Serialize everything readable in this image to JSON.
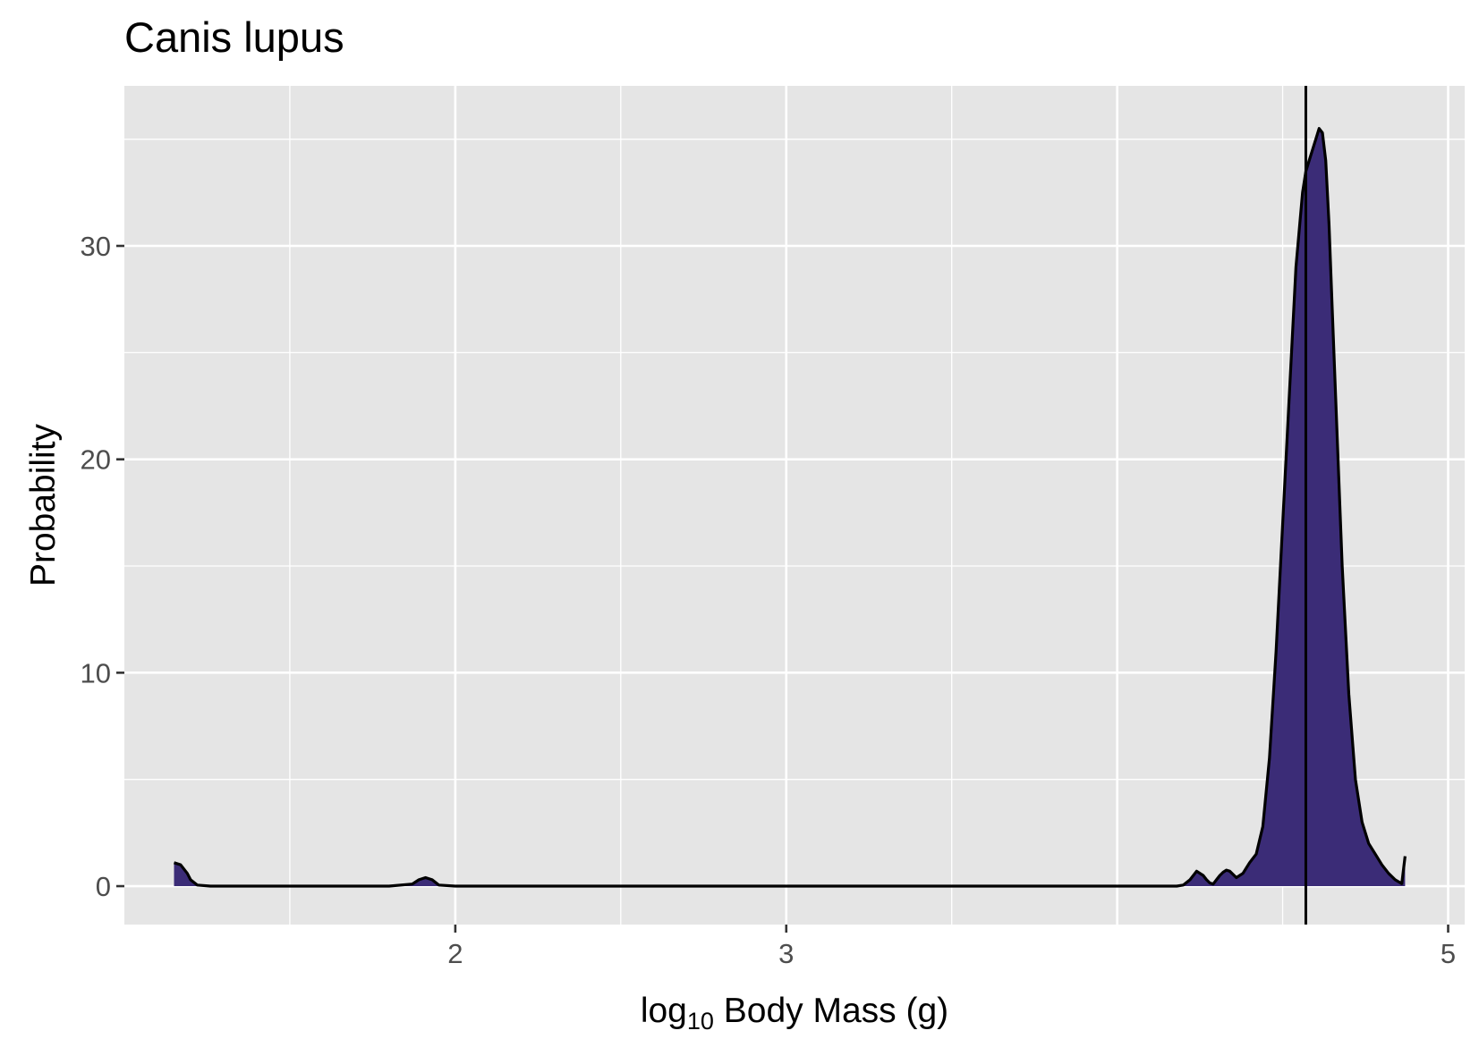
{
  "chart_data": {
    "type": "area",
    "title": "Canis lupus",
    "xlabel": {
      "pre": "log",
      "sub": "10",
      "post": " Body Mass (g)"
    },
    "ylabel": "Probability",
    "xlim": [
      1.0,
      5.05
    ],
    "ylim": [
      -1.8,
      37.5
    ],
    "x_ticks": [
      2,
      3,
      5
    ],
    "x_minor_grid": [
      1.5,
      2.5,
      3.5,
      4.5
    ],
    "x_major_grid": [
      2,
      3,
      4,
      5
    ],
    "y_ticks": [
      0,
      10,
      20,
      30
    ],
    "y_minor_grid": [
      5,
      15,
      25,
      35
    ],
    "grid": true,
    "vline_x": 4.57,
    "series": [
      {
        "fill": "#3b2c77",
        "line": "#000000",
        "x": [
          1.15,
          1.17,
          1.19,
          1.2,
          1.22,
          1.26,
          1.5,
          1.8,
          1.87,
          1.89,
          1.91,
          1.93,
          1.95,
          2.0,
          2.5,
          3.0,
          3.5,
          3.62,
          3.64,
          3.66,
          3.68,
          3.7,
          3.72,
          3.74,
          3.76,
          3.78,
          3.8,
          3.82,
          3.84,
          3.86,
          3.88,
          3.9,
          3.92,
          3.94,
          3.96,
          3.98,
          4.0,
          4.02,
          4.04,
          4.06,
          4.08,
          4.1,
          4.12,
          4.14,
          4.16,
          4.18,
          4.2,
          4.22,
          4.24,
          4.26,
          4.27,
          4.28,
          4.29,
          4.3,
          4.31,
          4.32,
          4.33,
          4.34,
          4.35,
          4.36,
          4.38,
          4.4,
          4.42,
          4.44,
          4.46,
          4.48,
          4.5,
          4.52,
          4.54,
          4.56,
          4.57,
          4.58,
          4.6,
          4.61,
          4.62,
          4.63,
          4.64,
          4.65,
          4.66,
          4.68,
          4.7,
          4.72,
          4.74,
          4.76,
          4.78,
          4.8,
          4.82,
          4.84,
          4.86,
          4.87
        ],
        "y": [
          1.1,
          1.0,
          0.6,
          0.3,
          0.05,
          0.0,
          0.0,
          0.0,
          0.1,
          0.3,
          0.4,
          0.3,
          0.05,
          0.0,
          0.0,
          0.0,
          0.0,
          0.0,
          0.0,
          0.0,
          0.0,
          0.0,
          0.0,
          0.0,
          0.0,
          0.0,
          0.0,
          0.0,
          0.0,
          0.0,
          0.0,
          0.0,
          0.0,
          0.0,
          0.0,
          0.0,
          0.0,
          0.0,
          0.0,
          0.0,
          0.0,
          0.0,
          0.0,
          0.0,
          0.0,
          0.0,
          0.05,
          0.3,
          0.7,
          0.5,
          0.3,
          0.15,
          0.1,
          0.3,
          0.5,
          0.65,
          0.75,
          0.7,
          0.55,
          0.4,
          0.6,
          1.1,
          1.5,
          2.8,
          6.0,
          11.0,
          17.0,
          23.0,
          29.0,
          32.5,
          33.5,
          34.0,
          35.0,
          35.5,
          35.3,
          34.0,
          31.0,
          27.0,
          23.0,
          15.0,
          9.0,
          5.0,
          3.0,
          2.0,
          1.5,
          1.0,
          0.6,
          0.3,
          0.12,
          1.4
        ]
      }
    ]
  }
}
